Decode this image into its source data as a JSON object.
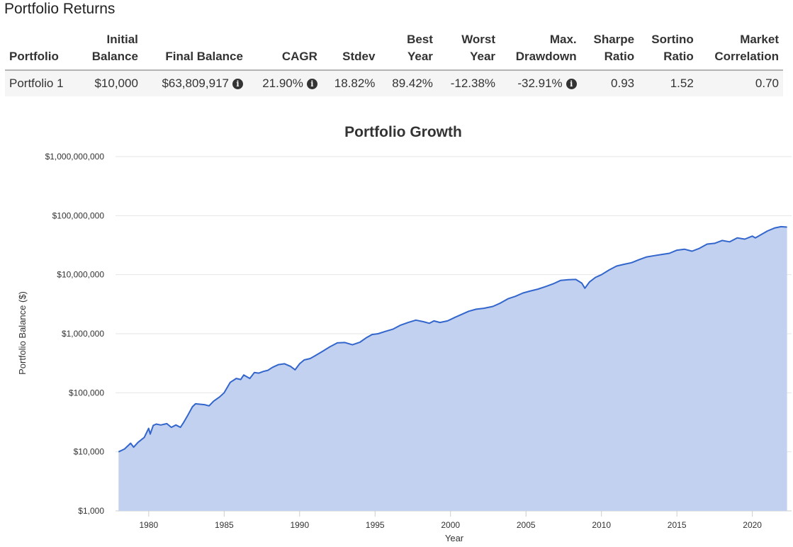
{
  "section_title": "Portfolio Returns",
  "table": {
    "headers": [
      {
        "line1": "",
        "line2": "Portfolio"
      },
      {
        "line1": "Initial",
        "line2": "Balance"
      },
      {
        "line1": "",
        "line2": "Final Balance"
      },
      {
        "line1": "",
        "line2": "CAGR"
      },
      {
        "line1": "",
        "line2": "Stdev"
      },
      {
        "line1": "Best",
        "line2": "Year"
      },
      {
        "line1": "Worst",
        "line2": "Year"
      },
      {
        "line1": "Max.",
        "line2": "Drawdown"
      },
      {
        "line1": "Sharpe",
        "line2": "Ratio"
      },
      {
        "line1": "Sortino",
        "line2": "Ratio"
      },
      {
        "line1": "Market",
        "line2": "Correlation"
      }
    ],
    "rows": [
      {
        "portfolio": "Portfolio 1",
        "initial_balance": "$10,000",
        "final_balance": "$63,809,917",
        "cagr": "21.90%",
        "stdev": "18.82%",
        "best_year": "89.42%",
        "worst_year": "-12.38%",
        "max_drawdown": "-32.91%",
        "sharpe_ratio": "0.93",
        "sortino_ratio": "1.52",
        "market_correlation": "0.70"
      }
    ]
  },
  "icons": {
    "info": "info-circle-icon",
    "info_glyph": "i"
  },
  "chart_data": {
    "type": "area",
    "title": "Portfolio Growth",
    "xlabel": "Year",
    "ylabel": "Portfolio Balance ($)",
    "yscale": "log",
    "ylim": [
      1000,
      1000000000
    ],
    "xlim": [
      1977.8,
      2022.6
    ],
    "x_ticks": [
      1980,
      1985,
      1990,
      1995,
      2000,
      2005,
      2010,
      2015,
      2020
    ],
    "y_ticks": [
      1000,
      10000,
      100000,
      1000000,
      10000000,
      100000000,
      1000000000
    ],
    "y_tick_labels": [
      "$1,000",
      "$10,000",
      "$100,000",
      "$1,000,000",
      "$10,000,000",
      "$100,000,000",
      "$1,000,000,000"
    ],
    "grid": true,
    "line_color": "#3366cc",
    "fill_color": "#c2d1f0",
    "series": [
      {
        "x": [
          1978.0,
          1978.4,
          1978.8,
          1979.0,
          1979.3,
          1979.7,
          1980.0,
          1980.1,
          1980.3,
          1980.5,
          1980.8,
          1981.2,
          1981.5,
          1981.8,
          1982.1,
          1982.3,
          1982.6,
          1982.9,
          1983.1,
          1983.4,
          1983.7,
          1984.0,
          1984.3,
          1984.7,
          1985.0,
          1985.4,
          1985.8,
          1986.1,
          1986.3,
          1986.7,
          1987.0,
          1987.3,
          1987.6,
          1987.9,
          1988.2,
          1988.6,
          1989.0,
          1989.4,
          1989.7,
          1990.0,
          1990.3,
          1990.7,
          1991.0,
          1991.5,
          1992.0,
          1992.5,
          1993.0,
          1993.5,
          1994.0,
          1994.4,
          1994.8,
          1995.2,
          1995.7,
          1996.2,
          1996.7,
          1997.2,
          1997.7,
          1998.2,
          1998.6,
          1998.9,
          1999.3,
          1999.8,
          2000.3,
          2000.7,
          2001.2,
          2001.7,
          2002.2,
          2002.8,
          2003.3,
          2003.8,
          2004.3,
          2004.8,
          2005.3,
          2005.8,
          2006.3,
          2006.8,
          2007.3,
          2007.8,
          2008.3,
          2008.7,
          2008.9,
          2009.2,
          2009.6,
          2010.0,
          2010.5,
          2011.0,
          2011.5,
          2012.0,
          2012.5,
          2013.0,
          2013.5,
          2014.0,
          2014.5,
          2015.0,
          2015.5,
          2016.0,
          2016.5,
          2017.0,
          2017.5,
          2018.0,
          2018.5,
          2019.0,
          2019.5,
          2020.0,
          2020.2,
          2020.6,
          2021.0,
          2021.5,
          2021.9,
          2022.3
        ],
        "values": [
          10000,
          11200,
          14000,
          12000,
          14500,
          17500,
          25000,
          20000,
          28000,
          29500,
          28500,
          30000,
          26000,
          28500,
          26000,
          31000,
          42000,
          58000,
          65000,
          64000,
          63000,
          60000,
          72000,
          85000,
          100000,
          150000,
          175000,
          168000,
          200000,
          175000,
          220000,
          215000,
          230000,
          240000,
          270000,
          300000,
          310000,
          280000,
          245000,
          310000,
          360000,
          380000,
          420000,
          500000,
          600000,
          700000,
          710000,
          650000,
          720000,
          850000,
          970000,
          1000000,
          1100000,
          1200000,
          1400000,
          1550000,
          1700000,
          1600000,
          1500000,
          1650000,
          1550000,
          1650000,
          1900000,
          2100000,
          2400000,
          2600000,
          2700000,
          2900000,
          3300000,
          3900000,
          4300000,
          4900000,
          5300000,
          5700000,
          6300000,
          7000000,
          8000000,
          8200000,
          8300000,
          7200000,
          5900000,
          7500000,
          9000000,
          10000000,
          12000000,
          14000000,
          15000000,
          16000000,
          18000000,
          20000000,
          21000000,
          22000000,
          23000000,
          26000000,
          27000000,
          25000000,
          28000000,
          33000000,
          34000000,
          38000000,
          36000000,
          42000000,
          40000000,
          45000000,
          42000000,
          48000000,
          55000000,
          62000000,
          65000000,
          64000000
        ]
      }
    ]
  }
}
